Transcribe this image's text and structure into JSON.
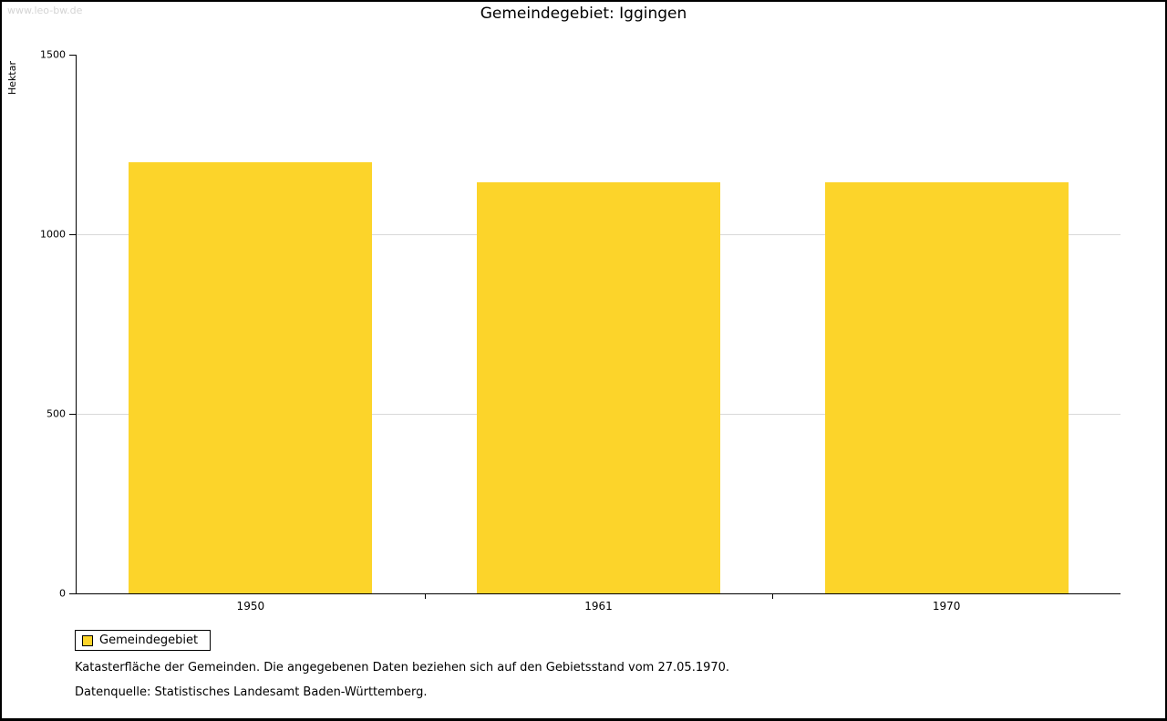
{
  "watermark": "www.leo-bw.de",
  "title": "Gemeindegebiet: Iggingen",
  "ylabel": "Hektar",
  "legend": {
    "label": "Gemeindegebiet",
    "swatch_color": "#fcd42a"
  },
  "footnote_line1": "Katasterfläche der Gemeinden. Die angegebenen Daten beziehen sich auf den Gebietsstand vom 27.05.1970.",
  "footnote_line2": "Datenquelle: Statistisches Landesamt Baden-Württemberg.",
  "colors": {
    "bar": "#fcd42a",
    "grid": "#d8d8d8",
    "axis": "#000000",
    "watermark": "#d4d4d4"
  },
  "chart_data": {
    "type": "bar",
    "categories": [
      "1950",
      "1961",
      "1970"
    ],
    "series": [
      {
        "name": "Gemeindegebiet",
        "values": [
          1200,
          1145,
          1145
        ]
      }
    ],
    "title": "Gemeindegebiet: Iggingen",
    "xlabel": "",
    "ylabel": "Hektar",
    "ylim": [
      0,
      1500
    ],
    "yticks": [
      0,
      500,
      1000,
      1500
    ],
    "gridlines": [
      500,
      1000
    ],
    "grid": true,
    "legend_position": "bottom-left"
  }
}
